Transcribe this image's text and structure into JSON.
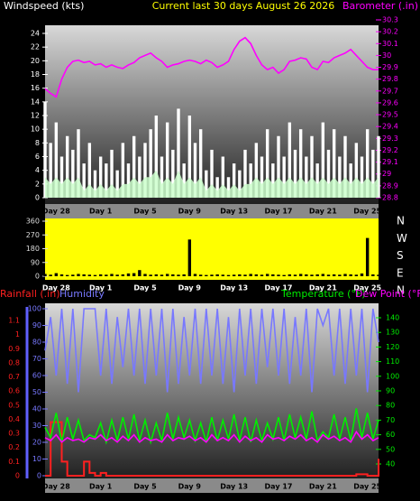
{
  "chart_data": [
    {
      "type": "bar",
      "title": "Current last 30 days August 26 2026",
      "ylabel": "Windspeed (kts)",
      "y2label": "Barometer (.in)",
      "categories": [
        null,
        null,
        "Day 28",
        null,
        null,
        null,
        null,
        null,
        null,
        null,
        "Day 1",
        null,
        null,
        null,
        null,
        null,
        null,
        null,
        "Day 5",
        null,
        null,
        null,
        null,
        null,
        null,
        null,
        "Day 9",
        null,
        null,
        null,
        null,
        null,
        null,
        null,
        "Day 13",
        null,
        null,
        null,
        null,
        null,
        null,
        null,
        "Day 17",
        null,
        null,
        null,
        null,
        null,
        null,
        null,
        "Day 21",
        null,
        null,
        null,
        null,
        null,
        null,
        null,
        "Day 25",
        null,
        null
      ],
      "ylim": [
        0,
        24
      ],
      "yticks": [
        0,
        2,
        4,
        6,
        8,
        10,
        12,
        14,
        16,
        18,
        20,
        22,
        24
      ],
      "y2lim": [
        28.8,
        30.3
      ],
      "y2ticks": [
        28.8,
        28.9,
        29,
        29.1,
        29.2,
        29.3,
        29.4,
        29.5,
        29.6,
        29.7,
        29.8,
        29.9,
        30,
        30.1,
        30.2,
        30.3
      ],
      "series": [
        {
          "type": "bar",
          "color": "#ffffff",
          "values": [
            14,
            8,
            11,
            6,
            9,
            7,
            10,
            5,
            8,
            4,
            6,
            5,
            7,
            4,
            8,
            5,
            9,
            6,
            8,
            10,
            12,
            6,
            11,
            7,
            13,
            5,
            12,
            8,
            10,
            4,
            7,
            3,
            6,
            3,
            5,
            4,
            7,
            5,
            8,
            6,
            10,
            5,
            9,
            6,
            11,
            7,
            10,
            6,
            9,
            5,
            11,
            7,
            10,
            6,
            9,
            5,
            8,
            6,
            10,
            7,
            9
          ]
        },
        {
          "type": "area",
          "color": "#ccffcc",
          "values": [
            3,
            2,
            3,
            2,
            3,
            2,
            3,
            1,
            2,
            1,
            2,
            1,
            2,
            1,
            2,
            2,
            3,
            2,
            3,
            3,
            4,
            2,
            3,
            2,
            4,
            2,
            3,
            2,
            3,
            1,
            2,
            1,
            2,
            1,
            2,
            1,
            2,
            2,
            3,
            2,
            3,
            2,
            3,
            2,
            3,
            2,
            3,
            2,
            3,
            2,
            3,
            2,
            3,
            2,
            3,
            2,
            3,
            2,
            3,
            2,
            3
          ]
        },
        {
          "type": "line",
          "color": "#ff00ff",
          "axis": "y2",
          "values": [
            29.72,
            29.68,
            29.65,
            29.8,
            29.9,
            29.95,
            29.96,
            29.94,
            29.95,
            29.92,
            29.93,
            29.9,
            29.92,
            29.9,
            29.89,
            29.92,
            29.94,
            29.98,
            30.0,
            30.02,
            29.98,
            29.95,
            29.9,
            29.92,
            29.93,
            29.95,
            29.96,
            29.95,
            29.93,
            29.96,
            29.94,
            29.9,
            29.92,
            29.95,
            30.05,
            30.12,
            30.15,
            30.1,
            30.0,
            29.92,
            29.88,
            29.9,
            29.85,
            29.88,
            29.95,
            29.96,
            29.98,
            29.97,
            29.9,
            29.88,
            29.95,
            29.94,
            29.98,
            30.0,
            30.02,
            30.05,
            30.0,
            29.95,
            29.9,
            29.88,
            29.88
          ]
        }
      ]
    },
    {
      "type": "bar",
      "categories": [
        null,
        null,
        "Day 28",
        null,
        null,
        null,
        null,
        null,
        null,
        null,
        "Day 1",
        null,
        null,
        null,
        null,
        null,
        null,
        null,
        "Day 5",
        null,
        null,
        null,
        null,
        null,
        null,
        null,
        "Day 9",
        null,
        null,
        null,
        null,
        null,
        null,
        null,
        "Day 13",
        null,
        null,
        null,
        null,
        null,
        null,
        null,
        "Day 17",
        null,
        null,
        null,
        null,
        null,
        null,
        null,
        "Day 21",
        null,
        null,
        null,
        null,
        null,
        null,
        null,
        "Day 25",
        null,
        null
      ],
      "background": "#ffff00",
      "ylim": [
        0,
        360
      ],
      "yticks": [
        0,
        90,
        180,
        270,
        360
      ],
      "y2lim": [
        0,
        360
      ],
      "y2ticks": [
        {
          "value": 0,
          "label": "N"
        },
        {
          "value": 90,
          "label": "E"
        },
        {
          "value": 180,
          "label": "S"
        },
        {
          "value": 270,
          "label": "W"
        },
        {
          "value": 360,
          "label": "N"
        }
      ],
      "series": [
        {
          "type": "bar",
          "color": "#000000",
          "values": [
            15,
            10,
            20,
            12,
            8,
            10,
            15,
            12,
            10,
            8,
            12,
            10,
            15,
            10,
            12,
            18,
            20,
            40,
            15,
            10,
            12,
            10,
            15,
            12,
            10,
            12,
            240,
            15,
            10,
            8,
            10,
            12,
            10,
            8,
            10,
            12,
            10,
            15,
            12,
            10,
            15,
            12,
            10,
            8,
            12,
            10,
            15,
            12,
            10,
            12,
            15,
            10,
            12,
            10,
            15,
            12,
            10,
            18,
            250,
            12,
            10
          ]
        }
      ]
    },
    {
      "type": "line",
      "categories": [
        null,
        null,
        "Day 28",
        null,
        null,
        null,
        null,
        null,
        null,
        null,
        "Day 1",
        null,
        null,
        null,
        null,
        null,
        null,
        null,
        "Day 5",
        null,
        null,
        null,
        null,
        null,
        null,
        null,
        "Day 9",
        null,
        null,
        null,
        null,
        null,
        null,
        null,
        "Day 13",
        null,
        null,
        null,
        null,
        null,
        null,
        null,
        "Day 17",
        null,
        null,
        null,
        null,
        null,
        null,
        null,
        "Day 21",
        null,
        null,
        null,
        null,
        null,
        null,
        null,
        "Day 25",
        null,
        null
      ],
      "ylim": [
        0,
        1.1
      ],
      "yticks": [
        0,
        0.1,
        0.2,
        0.3,
        0.4,
        0.5,
        0.6,
        0.7,
        0.8,
        0.9,
        1,
        1.1
      ],
      "y2lim": [
        0,
        100
      ],
      "y2ticks": [
        0,
        10,
        20,
        30,
        40,
        50,
        60,
        70,
        80,
        90,
        100
      ],
      "y3lim": [
        40,
        140
      ],
      "y3ticks": [
        40,
        50,
        60,
        70,
        80,
        90,
        100,
        110,
        120,
        130,
        140
      ],
      "series": [
        {
          "name": "Rainfall (.in)",
          "type": "step",
          "color": "#ff2020",
          "values": [
            0,
            0.38,
            0.38,
            0.1,
            0,
            0,
            0,
            0.1,
            0.02,
            0,
            0.02,
            0,
            0,
            0,
            0,
            0,
            0,
            0,
            0,
            0,
            0,
            0,
            0,
            0,
            0,
            0,
            0,
            0,
            0,
            0,
            0,
            0,
            0,
            0,
            0,
            0,
            0,
            0,
            0,
            0,
            0,
            0,
            0,
            0,
            0,
            0,
            0,
            0,
            0,
            0,
            0,
            0,
            0,
            0,
            0,
            0,
            0.01,
            0.01,
            0,
            0,
            0.12
          ]
        },
        {
          "name": "Humidity",
          "type": "line",
          "color": "#7878ff",
          "axis": "y2",
          "values": [
            75,
            95,
            60,
            100,
            55,
            100,
            50,
            100,
            100,
            100,
            60,
            100,
            55,
            95,
            65,
            100,
            60,
            100,
            55,
            100,
            60,
            100,
            50,
            100,
            55,
            95,
            60,
            100,
            55,
            100,
            60,
            100,
            55,
            95,
            50,
            100,
            60,
            100,
            55,
            100,
            65,
            100,
            60,
            100,
            55,
            95,
            60,
            100,
            50,
            100,
            90,
            100,
            60,
            100,
            55,
            100,
            60,
            100,
            50,
            100,
            80
          ]
        },
        {
          "name": "Temperature (°F)",
          "type": "line",
          "color": "#00ee00",
          "axis": "y3",
          "values": [
            65,
            58,
            75,
            55,
            72,
            57,
            70,
            56,
            60,
            58,
            68,
            55,
            70,
            56,
            72,
            57,
            74,
            56,
            70,
            55,
            68,
            56,
            75,
            57,
            72,
            58,
            70,
            56,
            68,
            55,
            72,
            56,
            70,
            57,
            74,
            56,
            72,
            55,
            70,
            56,
            68,
            57,
            72,
            56,
            74,
            58,
            72,
            57,
            76,
            56,
            62,
            58,
            74,
            57,
            72,
            56,
            78,
            58,
            75,
            57,
            70
          ]
        },
        {
          "name": "Dew Point (°F)",
          "type": "line",
          "color": "#ff00ff",
          "axis": "y3",
          "values": [
            58,
            56,
            60,
            55,
            58,
            56,
            57,
            55,
            58,
            57,
            60,
            56,
            58,
            55,
            59,
            56,
            60,
            55,
            58,
            56,
            57,
            55,
            60,
            56,
            58,
            57,
            59,
            56,
            58,
            55,
            60,
            56,
            58,
            56,
            60,
            55,
            59,
            56,
            58,
            55,
            60,
            57,
            58,
            56,
            59,
            57,
            60,
            56,
            58,
            55,
            60,
            57,
            59,
            56,
            58,
            55,
            62,
            57,
            60,
            56,
            58
          ]
        }
      ]
    }
  ]
}
